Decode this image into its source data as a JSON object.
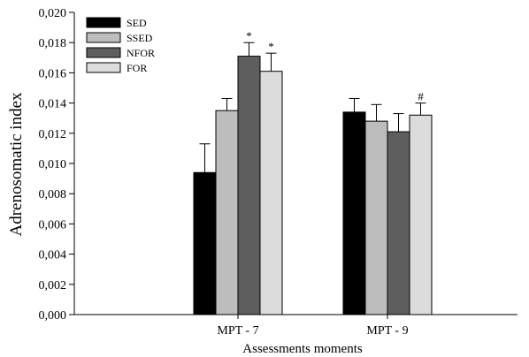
{
  "chart_data": {
    "type": "bar",
    "xlabel": "Assessments moments",
    "ylabel": "Adrenosomatic index",
    "ylim": [
      0,
      0.02
    ],
    "yticks": [
      "0,000",
      "0,002",
      "0,004",
      "0,006",
      "0,008",
      "0,010",
      "0,012",
      "0,014",
      "0,016",
      "0,018",
      "0,020"
    ],
    "ytick_values": [
      0,
      0.002,
      0.004,
      0.006,
      0.008,
      0.01,
      0.012,
      0.014,
      0.016,
      0.018,
      0.02
    ],
    "categories": [
      "MPT - 7",
      "MPT - 9"
    ],
    "legend_position": "top-left",
    "error_bars": "upper",
    "series": [
      {
        "name": "SED",
        "color": "#000000",
        "values": [
          0.0094,
          0.0134
        ],
        "errors": [
          0.0019,
          0.0009
        ]
      },
      {
        "name": "SSED",
        "color": "#bdbdbd",
        "values": [
          0.0135,
          0.0128
        ],
        "errors": [
          0.0008,
          0.0011
        ]
      },
      {
        "name": "NFOR",
        "color": "#5e5e5e",
        "values": [
          0.0171,
          0.0121
        ],
        "errors": [
          0.0009,
          0.0012
        ]
      },
      {
        "name": "FOR",
        "color": "#dcdcdc",
        "values": [
          0.0161,
          0.0132
        ],
        "errors": [
          0.0012,
          0.0008
        ]
      }
    ],
    "annotations": [
      {
        "text": "*",
        "series": 2,
        "category": 0
      },
      {
        "text": "*",
        "series": 3,
        "category": 0
      },
      {
        "text": "#",
        "series": 3,
        "category": 1
      }
    ]
  }
}
